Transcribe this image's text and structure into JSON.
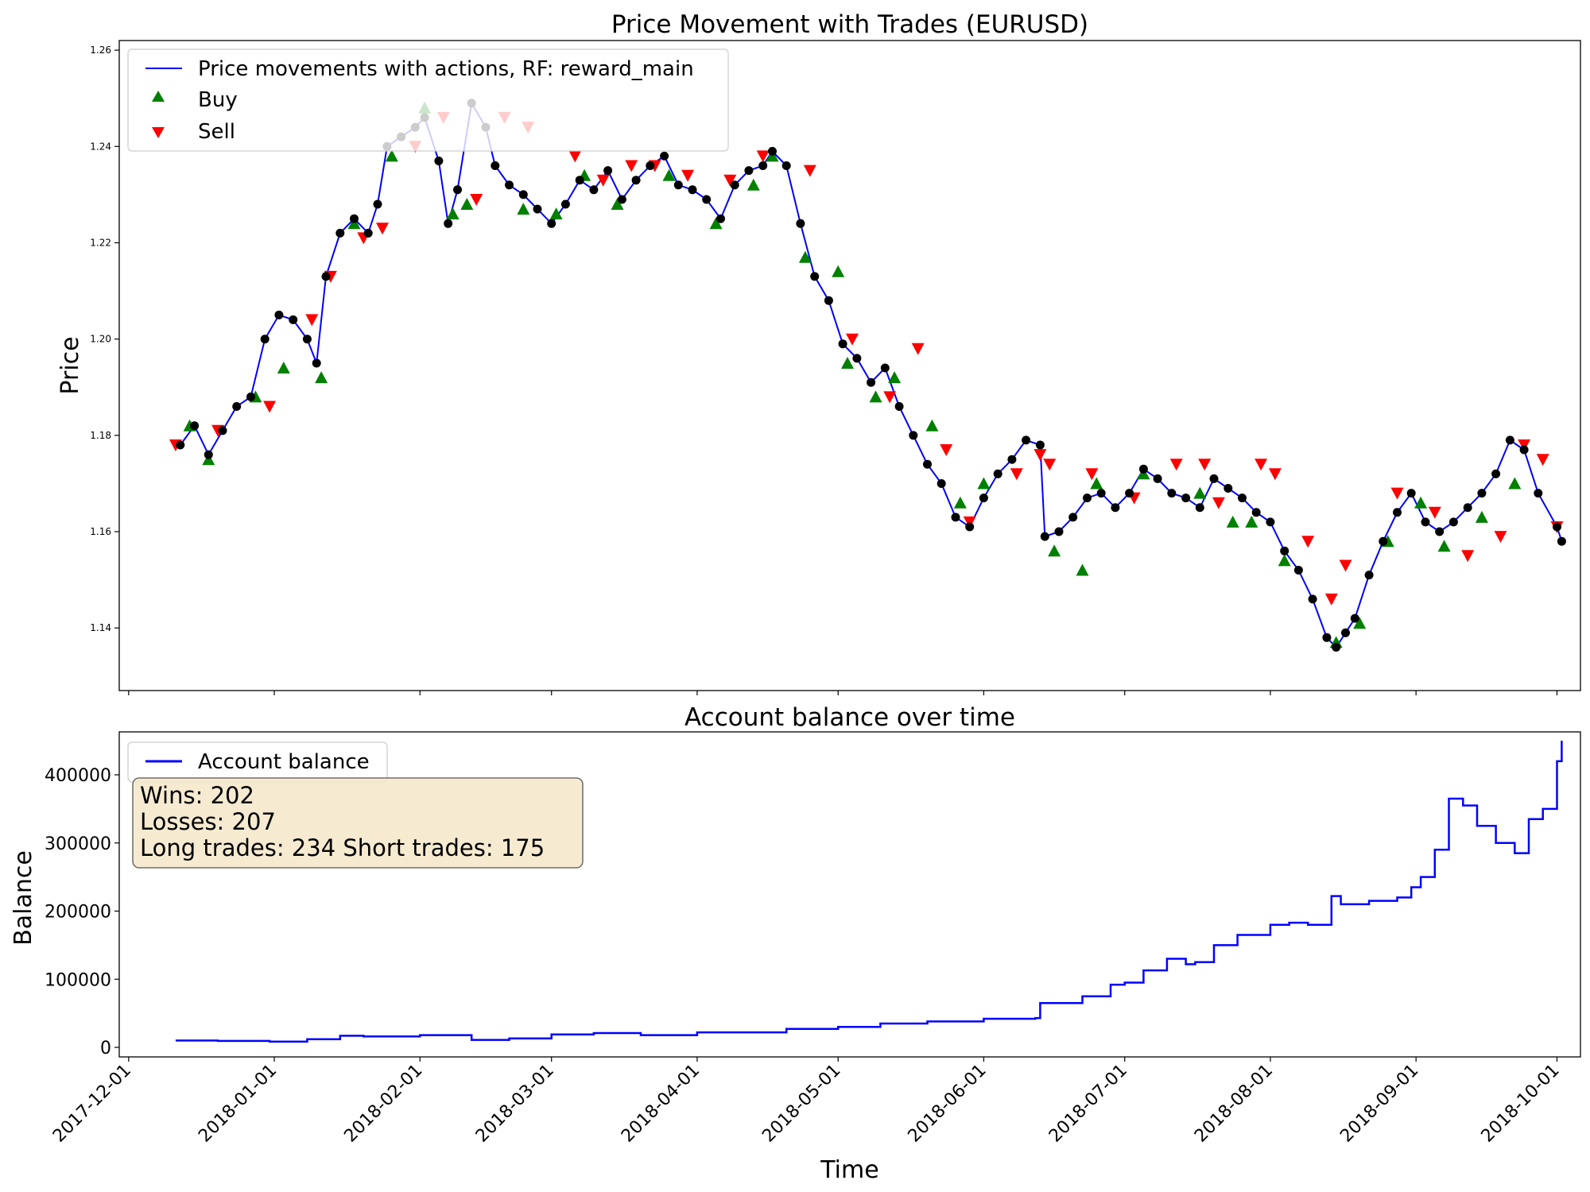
{
  "chart_data": [
    {
      "type": "line",
      "title": "Price Movement with Trades (EURUSD)",
      "xlabel": "",
      "ylabel": "Price",
      "ylim": [
        1.127,
        1.262
      ],
      "xlim": [
        "2017-11-29",
        "2018-10-06"
      ],
      "yticks": [
        "1.14",
        "1.16",
        "1.18",
        "1.20",
        "1.22",
        "1.24",
        "1.26"
      ],
      "xticks": [
        "2017-12-01",
        "2018-01-01",
        "2018-02-01",
        "2018-03-01",
        "2018-04-01",
        "2018-05-01",
        "2018-06-01",
        "2018-07-01",
        "2018-08-01",
        "2018-09-01",
        "2018-10-01"
      ],
      "legend_position": "top-left",
      "legend": [
        "Price movements with actions, RF: reward_main",
        "Buy",
        "Sell"
      ],
      "colors": {
        "price": "#0000ff",
        "buy": "#008000",
        "sell": "#ff0000",
        "exit": "#000000"
      },
      "series": [
        {
          "name": "Price movements with actions, RF: reward_main",
          "x": [
            "2017-12-12",
            "2017-12-15",
            "2017-12-18",
            "2017-12-21",
            "2017-12-24",
            "2017-12-27",
            "2017-12-30",
            "2018-01-02",
            "2018-01-05",
            "2018-01-08",
            "2018-01-10",
            "2018-01-12",
            "2018-01-15",
            "2018-01-18",
            "2018-01-21",
            "2018-01-23",
            "2018-01-25",
            "2018-01-28",
            "2018-01-31",
            "2018-02-02",
            "2018-02-05",
            "2018-02-07",
            "2018-02-09",
            "2018-02-12",
            "2018-02-15",
            "2018-02-17",
            "2018-02-20",
            "2018-02-23",
            "2018-02-26",
            "2018-03-01",
            "2018-03-04",
            "2018-03-07",
            "2018-03-10",
            "2018-03-13",
            "2018-03-16",
            "2018-03-19",
            "2018-03-22",
            "2018-03-25",
            "2018-03-28",
            "2018-03-31",
            "2018-04-03",
            "2018-04-06",
            "2018-04-09",
            "2018-04-12",
            "2018-04-15",
            "2018-04-17",
            "2018-04-20",
            "2018-04-23",
            "2018-04-26",
            "2018-04-29",
            "2018-05-02",
            "2018-05-05",
            "2018-05-08",
            "2018-05-11",
            "2018-05-14",
            "2018-05-17",
            "2018-05-20",
            "2018-05-23",
            "2018-05-26",
            "2018-05-29",
            "2018-06-01",
            "2018-06-04",
            "2018-06-07",
            "2018-06-10",
            "2018-06-13",
            "2018-06-14",
            "2018-06-17",
            "2018-06-20",
            "2018-06-23",
            "2018-06-26",
            "2018-06-29",
            "2018-07-02",
            "2018-07-05",
            "2018-07-08",
            "2018-07-11",
            "2018-07-14",
            "2018-07-17",
            "2018-07-20",
            "2018-07-23",
            "2018-07-26",
            "2018-07-29",
            "2018-08-01",
            "2018-08-04",
            "2018-08-07",
            "2018-08-10",
            "2018-08-13",
            "2018-08-15",
            "2018-08-17",
            "2018-08-19",
            "2018-08-22",
            "2018-08-25",
            "2018-08-28",
            "2018-08-31",
            "2018-09-03",
            "2018-09-06",
            "2018-09-09",
            "2018-09-12",
            "2018-09-15",
            "2018-09-18",
            "2018-09-21",
            "2018-09-24",
            "2018-09-27",
            "2018-10-01",
            "2018-10-02"
          ],
          "values": [
            1.178,
            1.182,
            1.176,
            1.181,
            1.186,
            1.188,
            1.2,
            1.205,
            1.204,
            1.2,
            1.195,
            1.213,
            1.222,
            1.225,
            1.222,
            1.228,
            1.24,
            1.242,
            1.244,
            1.246,
            1.237,
            1.224,
            1.231,
            1.249,
            1.244,
            1.236,
            1.232,
            1.23,
            1.227,
            1.224,
            1.228,
            1.233,
            1.231,
            1.235,
            1.229,
            1.233,
            1.236,
            1.238,
            1.232,
            1.231,
            1.229,
            1.225,
            1.232,
            1.235,
            1.236,
            1.239,
            1.236,
            1.224,
            1.213,
            1.208,
            1.199,
            1.196,
            1.191,
            1.194,
            1.186,
            1.18,
            1.174,
            1.17,
            1.163,
            1.161,
            1.167,
            1.172,
            1.175,
            1.179,
            1.178,
            1.159,
            1.16,
            1.163,
            1.167,
            1.168,
            1.165,
            1.168,
            1.173,
            1.171,
            1.168,
            1.167,
            1.165,
            1.171,
            1.169,
            1.167,
            1.164,
            1.162,
            1.156,
            1.152,
            1.146,
            1.138,
            1.136,
            1.139,
            1.142,
            1.151,
            1.158,
            1.164,
            1.168,
            1.162,
            1.16,
            1.162,
            1.165,
            1.168,
            1.172,
            1.179,
            1.177,
            1.168,
            1.161,
            1.158
          ]
        }
      ],
      "buy_points": {
        "x": [
          "2017-12-14",
          "2017-12-18",
          "2017-12-28",
          "2018-01-03",
          "2018-01-11",
          "2018-01-18",
          "2018-01-26",
          "2018-02-02",
          "2018-02-08",
          "2018-02-11",
          "2018-02-23",
          "2018-03-02",
          "2018-03-08",
          "2018-03-15",
          "2018-03-26",
          "2018-04-05",
          "2018-04-13",
          "2018-04-17",
          "2018-04-24",
          "2018-05-01",
          "2018-05-03",
          "2018-05-09",
          "2018-05-13",
          "2018-05-21",
          "2018-05-27",
          "2018-06-01",
          "2018-06-16",
          "2018-06-22",
          "2018-06-25",
          "2018-07-05",
          "2018-07-17",
          "2018-07-24",
          "2018-07-28",
          "2018-08-04",
          "2018-08-15",
          "2018-08-20",
          "2018-08-26",
          "2018-09-02",
          "2018-09-07",
          "2018-09-15",
          "2018-09-22"
        ],
        "values": [
          1.182,
          1.175,
          1.188,
          1.194,
          1.192,
          1.224,
          1.238,
          1.248,
          1.226,
          1.228,
          1.227,
          1.226,
          1.234,
          1.228,
          1.234,
          1.224,
          1.232,
          1.238,
          1.217,
          1.214,
          1.195,
          1.188,
          1.192,
          1.182,
          1.166,
          1.17,
          1.156,
          1.152,
          1.17,
          1.172,
          1.168,
          1.162,
          1.162,
          1.154,
          1.137,
          1.141,
          1.158,
          1.166,
          1.157,
          1.163,
          1.17
        ]
      },
      "sell_points": {
        "x": [
          "2017-12-11",
          "2017-12-20",
          "2017-12-31",
          "2018-01-09",
          "2018-01-13",
          "2018-01-20",
          "2018-01-24",
          "2018-01-31",
          "2018-02-06",
          "2018-02-13",
          "2018-02-19",
          "2018-02-24",
          "2018-03-06",
          "2018-03-12",
          "2018-03-18",
          "2018-03-23",
          "2018-03-30",
          "2018-04-08",
          "2018-04-15",
          "2018-04-25",
          "2018-05-04",
          "2018-05-12",
          "2018-05-18",
          "2018-05-24",
          "2018-05-29",
          "2018-06-08",
          "2018-06-13",
          "2018-06-15",
          "2018-06-24",
          "2018-07-03",
          "2018-07-12",
          "2018-07-18",
          "2018-07-21",
          "2018-07-30",
          "2018-08-02",
          "2018-08-09",
          "2018-08-14",
          "2018-08-17",
          "2018-08-28",
          "2018-09-05",
          "2018-09-12",
          "2018-09-19",
          "2018-09-24",
          "2018-09-28",
          "2018-10-01"
        ],
        "values": [
          1.178,
          1.181,
          1.186,
          1.204,
          1.213,
          1.221,
          1.223,
          1.24,
          1.246,
          1.229,
          1.246,
          1.244,
          1.238,
          1.233,
          1.236,
          1.236,
          1.234,
          1.233,
          1.238,
          1.235,
          1.2,
          1.188,
          1.198,
          1.177,
          1.162,
          1.172,
          1.176,
          1.174,
          1.172,
          1.167,
          1.174,
          1.174,
          1.166,
          1.174,
          1.172,
          1.158,
          1.146,
          1.153,
          1.168,
          1.164,
          1.155,
          1.159,
          1.178,
          1.175,
          1.161
        ]
      }
    },
    {
      "type": "line",
      "title": "Account balance over time",
      "xlabel": "Time",
      "ylabel": "Balance",
      "ylim": [
        -14000,
        463000
      ],
      "xlim": [
        "2017-11-29",
        "2018-10-06"
      ],
      "yticks": [
        "0",
        "100000",
        "200000",
        "300000",
        "400000"
      ],
      "xticks": [
        "2017-12-01",
        "2018-01-01",
        "2018-02-01",
        "2018-03-01",
        "2018-04-01",
        "2018-05-01",
        "2018-06-01",
        "2018-07-01",
        "2018-08-01",
        "2018-09-01",
        "2018-10-01"
      ],
      "legend_position": "top-left",
      "legend": [
        "Account balance"
      ],
      "colors": {
        "line": "#0000ff",
        "stats_box": "#f5e6c8"
      },
      "stats": {
        "wins": "Wins: 202",
        "losses": "Losses: 207",
        "trades": "Long trades: 234 Short trades: 175"
      },
      "series": [
        {
          "name": "Account balance",
          "x": [
            "2017-12-11",
            "2017-12-20",
            "2017-12-31",
            "2018-01-08",
            "2018-01-15",
            "2018-01-20",
            "2018-02-01",
            "2018-02-12",
            "2018-02-20",
            "2018-03-01",
            "2018-03-10",
            "2018-03-20",
            "2018-04-01",
            "2018-04-10",
            "2018-04-20",
            "2018-05-01",
            "2018-05-10",
            "2018-05-20",
            "2018-06-01",
            "2018-06-12",
            "2018-06-13",
            "2018-06-22",
            "2018-06-28",
            "2018-07-01",
            "2018-07-05",
            "2018-07-10",
            "2018-07-14",
            "2018-07-16",
            "2018-07-20",
            "2018-07-25",
            "2018-07-30",
            "2018-08-01",
            "2018-08-05",
            "2018-08-09",
            "2018-08-14",
            "2018-08-16",
            "2018-08-22",
            "2018-08-28",
            "2018-08-31",
            "2018-09-02",
            "2018-09-05",
            "2018-09-08",
            "2018-09-11",
            "2018-09-14",
            "2018-09-18",
            "2018-09-22",
            "2018-09-25",
            "2018-09-27",
            "2018-09-28",
            "2018-10-01",
            "2018-10-02"
          ],
          "values": [
            10000,
            9500,
            8500,
            12000,
            17000,
            16000,
            18000,
            11000,
            13000,
            19000,
            21000,
            18000,
            22000,
            22000,
            27000,
            30000,
            35000,
            38000,
            42000,
            43000,
            65000,
            75000,
            92000,
            95000,
            113000,
            130000,
            122000,
            125000,
            150000,
            165000,
            165000,
            180000,
            183000,
            180000,
            222000,
            210000,
            215000,
            220000,
            235000,
            250000,
            290000,
            365000,
            355000,
            325000,
            300000,
            285000,
            335000,
            335000,
            350000,
            420000,
            450000
          ]
        }
      ]
    }
  ]
}
